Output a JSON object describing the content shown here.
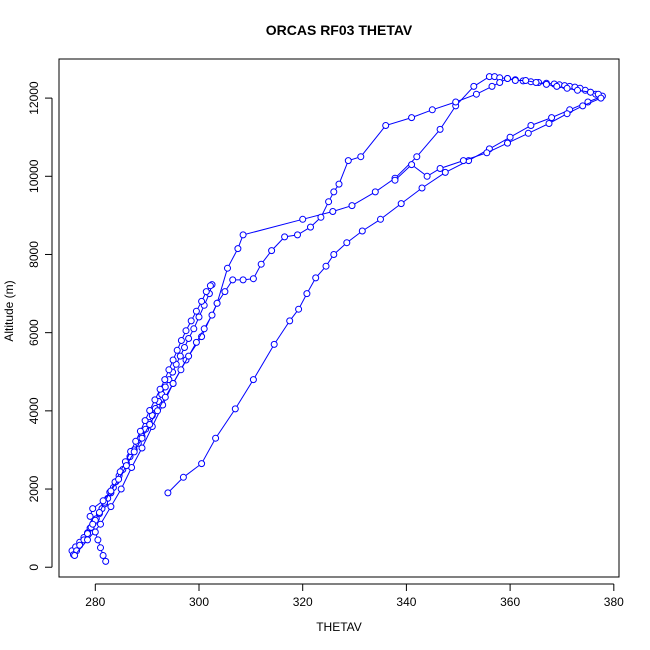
{
  "chart_data": {
    "type": "line",
    "title": "ORCAS RF03 THETAV",
    "xlabel": "THETAV",
    "ylabel": "Altitude (m)",
    "xlim": [
      273,
      381
    ],
    "ylim": [
      -250,
      13000
    ],
    "xticks": [
      280,
      300,
      320,
      340,
      360,
      380
    ],
    "yticks": [
      0,
      2000,
      4000,
      6000,
      8000,
      10000,
      12000
    ],
    "grid": false,
    "legend": "none",
    "colors": {
      "series": "#0000ff",
      "axis": "#000000"
    },
    "marker": "open-circle",
    "series": [
      {
        "x": [
          275.5,
          276.2,
          277.0,
          277.8,
          278.5,
          279.0,
          279.6,
          280.2,
          280.8,
          281.3,
          281.8,
          282.4,
          283.0,
          283.5,
          284.0,
          284.6,
          285.3,
          286.0,
          286.7,
          287.5,
          288.3,
          289.0,
          289.7,
          290.4,
          291.0,
          291.6,
          292.2,
          292.8,
          293.5,
          294.2,
          294.9,
          295.6,
          296.4,
          297.2,
          298.0,
          299.0,
          300.0,
          301.0,
          302.0,
          302.5
        ],
        "y": [
          420,
          520,
          640,
          760,
          880,
          1000,
          1120,
          1240,
          1370,
          1500,
          1620,
          1760,
          1900,
          2040,
          2190,
          2340,
          2500,
          2660,
          2830,
          3000,
          3170,
          3350,
          3530,
          3700,
          3880,
          4060,
          4240,
          4420,
          4610,
          4800,
          4990,
          5190,
          5400,
          5620,
          5850,
          6100,
          6400,
          6700,
          7000,
          7230
        ]
      },
      {
        "x": [
          302.2,
          301.4,
          300.5,
          299.5,
          298.5,
          297.5,
          296.6,
          295.8,
          295.0,
          294.2,
          293.4,
          292.5,
          291.5,
          290.5,
          289.6,
          288.7,
          287.8,
          286.8,
          285.8,
          284.8,
          283.8,
          282.8,
          281.8,
          280.8,
          280.0,
          279.2,
          278.5,
          277.8,
          277.0,
          276.4,
          275.8
        ],
        "y": [
          7200,
          7050,
          6800,
          6550,
          6300,
          6050,
          5800,
          5550,
          5300,
          5050,
          4800,
          4550,
          4280,
          4010,
          3750,
          3480,
          3220,
          2960,
          2700,
          2440,
          2180,
          1920,
          1660,
          1400,
          1200,
          1020,
          860,
          700,
          560,
          420,
          320
        ]
      },
      {
        "x": [
          276.0,
          278.5,
          281.0,
          283.0,
          285.0,
          287.0,
          289.0,
          291.0,
          293.0,
          295.0,
          297.5,
          300.5,
          303.5,
          305.5,
          307.5,
          308.5,
          320.0,
          325.8,
          329.5,
          334.0,
          337.8,
          342.0,
          346.5,
          349.5,
          353.0,
          356.0,
          357.0,
          358.0,
          359.5,
          361.0,
          362.5,
          364.0,
          365.5,
          367.0,
          368.5,
          369.5,
          370.5,
          371.5,
          372.5,
          373.5,
          374.5,
          375.5,
          376.5,
          377.5
        ],
        "y": [
          300,
          700,
          1100,
          1550,
          2000,
          2550,
          3050,
          3600,
          4150,
          4700,
          5300,
          5900,
          6750,
          7650,
          8150,
          8500,
          8900,
          9100,
          9250,
          9600,
          9950,
          10500,
          11200,
          11800,
          12300,
          12550,
          12550,
          12520,
          12500,
          12470,
          12440,
          12420,
          12400,
          12380,
          12360,
          12340,
          12320,
          12300,
          12280,
          12250,
          12200,
          12150,
          12100,
          12050
        ]
      },
      {
        "x": [
          377.8,
          375.0,
          371.5,
          368.0,
          364.0,
          360.0,
          356.0,
          352.0,
          347.5,
          343.0,
          339.0,
          335.0,
          331.5,
          328.5,
          326.0,
          324.5,
          322.5,
          320.8,
          319.2,
          317.5,
          314.5,
          310.5,
          307.0,
          303.2,
          300.5,
          297.0,
          294.0
        ],
        "y": [
          12050,
          11900,
          11700,
          11500,
          11300,
          11000,
          10700,
          10400,
          10100,
          9700,
          9300,
          8900,
          8600,
          8300,
          8000,
          7700,
          7400,
          7000,
          6600,
          6300,
          5700,
          4800,
          4050,
          3300,
          2650,
          2300,
          1900
        ]
      },
      {
        "x": [
          282.0,
          281.5,
          281.0,
          280.5,
          280.0,
          279.5,
          279.0,
          279.5,
          281.5,
          283.0,
          284.5,
          286.0,
          287.5,
          289.0,
          290.5,
          292.0,
          293.5,
          295.0,
          296.5,
          298.0,
          299.5,
          301.0,
          302.5,
          303.5,
          305.0,
          306.5,
          308.5,
          310.5,
          312.0,
          314.0,
          316.5,
          319.0,
          321.5,
          323.5,
          325.0,
          326.0,
          327.0,
          328.8,
          331.2,
          336.0,
          341.0,
          345.0,
          349.5,
          353.5,
          356.5,
          358.0,
          359.5,
          361.0,
          363.0,
          365.0,
          367.0,
          369.0,
          371.0,
          373.0,
          375.5,
          377.0,
          377.5,
          374.0,
          371.0,
          367.5,
          363.5,
          359.5,
          355.5,
          351.0,
          346.5,
          344.0,
          341.0,
          337.8
        ],
        "y": [
          150,
          300,
          500,
          700,
          900,
          1100,
          1300,
          1500,
          1700,
          1950,
          2250,
          2600,
          2950,
          3300,
          3650,
          4000,
          4350,
          4700,
          5050,
          5400,
          5750,
          6100,
          6450,
          6750,
          7050,
          7350,
          7350,
          7380,
          7750,
          8100,
          8450,
          8500,
          8700,
          8950,
          9350,
          9600,
          9800,
          10400,
          10500,
          11300,
          11500,
          11700,
          11900,
          12100,
          12300,
          12400,
          12500,
          12450,
          12450,
          12400,
          12350,
          12300,
          12250,
          12200,
          12150,
          12100,
          12000,
          11800,
          11600,
          11350,
          11100,
          10850,
          10600,
          10400,
          10200,
          10000,
          10300,
          9900
        ]
      }
    ]
  }
}
